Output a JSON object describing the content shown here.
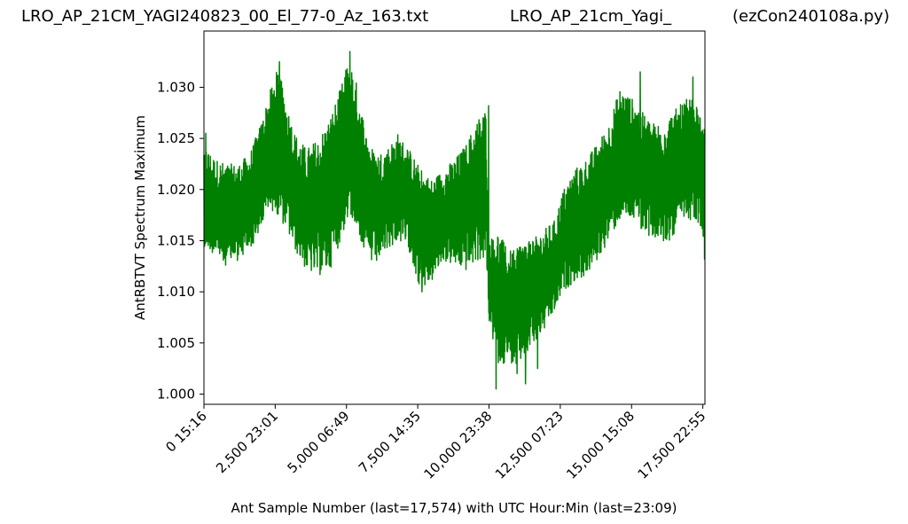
{
  "titles": {
    "left": "LRO_AP_21CM_YAGI240823_00_El_77-0_Az_163.txt",
    "middle": "LRO_AP_21cm_Yagi_",
    "right": "(ezCon240108a.py)"
  },
  "chart_data": {
    "type": "line",
    "xlabel": "Ant Sample Number (last=17,574) with UTC Hour:Min (last=23:09)",
    "ylabel": "AntRBTVT Spectrum Maximum",
    "xlim": [
      0,
      17574
    ],
    "ylim": [
      0.999,
      1.0355
    ],
    "x_ticks": [
      {
        "value": 0,
        "label": "0  15:16"
      },
      {
        "value": 2500,
        "label": "2,500  23:01"
      },
      {
        "value": 5000,
        "label": "5,000  06:49"
      },
      {
        "value": 7500,
        "label": "7,500  14:35"
      },
      {
        "value": 10000,
        "label": "10,000  23:38"
      },
      {
        "value": 12500,
        "label": "12,500  07:23"
      },
      {
        "value": 15000,
        "label": "15,000  15:08"
      },
      {
        "value": 17500,
        "label": "17,500  22:55"
      }
    ],
    "y_ticks": [
      {
        "value": 1.0,
        "label": "1.000"
      },
      {
        "value": 1.005,
        "label": "1.005"
      },
      {
        "value": 1.01,
        "label": "1.010"
      },
      {
        "value": 1.015,
        "label": "1.015"
      },
      {
        "value": 1.02,
        "label": "1.020"
      },
      {
        "value": 1.025,
        "label": "1.025"
      },
      {
        "value": 1.03,
        "label": "1.030"
      }
    ],
    "series": [
      {
        "color": "#008000",
        "envelope": [
          {
            "x": 0,
            "low": 1.0145,
            "high": 1.0245
          },
          {
            "x": 400,
            "low": 1.0135,
            "high": 1.023
          },
          {
            "x": 800,
            "low": 1.0125,
            "high": 1.0225
          },
          {
            "x": 1200,
            "low": 1.013,
            "high": 1.0225
          },
          {
            "x": 1600,
            "low": 1.014,
            "high": 1.0235
          },
          {
            "x": 2000,
            "low": 1.016,
            "high": 1.0265
          },
          {
            "x": 2300,
            "low": 1.018,
            "high": 1.0295
          },
          {
            "x": 2600,
            "low": 1.0175,
            "high": 1.032
          },
          {
            "x": 2900,
            "low": 1.016,
            "high": 1.0285
          },
          {
            "x": 3200,
            "low": 1.014,
            "high": 1.0255
          },
          {
            "x": 3600,
            "low": 1.012,
            "high": 1.024
          },
          {
            "x": 4000,
            "low": 1.0115,
            "high": 1.025
          },
          {
            "x": 4400,
            "low": 1.012,
            "high": 1.027
          },
          {
            "x": 4800,
            "low": 1.015,
            "high": 1.03
          },
          {
            "x": 5100,
            "low": 1.0175,
            "high": 1.033
          },
          {
            "x": 5400,
            "low": 1.016,
            "high": 1.03
          },
          {
            "x": 5700,
            "low": 1.013,
            "high": 1.0255
          },
          {
            "x": 6000,
            "low": 1.0125,
            "high": 1.0235
          },
          {
            "x": 6400,
            "low": 1.014,
            "high": 1.024
          },
          {
            "x": 6800,
            "low": 1.015,
            "high": 1.0255
          },
          {
            "x": 7200,
            "low": 1.014,
            "high": 1.024
          },
          {
            "x": 7600,
            "low": 1.01,
            "high": 1.022
          },
          {
            "x": 8000,
            "low": 1.011,
            "high": 1.021
          },
          {
            "x": 8400,
            "low": 1.013,
            "high": 1.022
          },
          {
            "x": 8800,
            "low": 1.0125,
            "high": 1.023
          },
          {
            "x": 9200,
            "low": 1.012,
            "high": 1.0245
          },
          {
            "x": 9600,
            "low": 1.013,
            "high": 1.027
          },
          {
            "x": 9900,
            "low": 1.013,
            "high": 1.028
          },
          {
            "x": 10000,
            "low": 1.007,
            "high": 1.015
          },
          {
            "x": 10300,
            "low": 1.003,
            "high": 1.016
          },
          {
            "x": 10700,
            "low": 1.003,
            "high": 1.014
          },
          {
            "x": 11100,
            "low": 1.003,
            "high": 1.015
          },
          {
            "x": 11500,
            "low": 1.005,
            "high": 1.0155
          },
          {
            "x": 11900,
            "low": 1.006,
            "high": 1.016
          },
          {
            "x": 12300,
            "low": 1.008,
            "high": 1.017
          },
          {
            "x": 12600,
            "low": 1.01,
            "high": 1.02
          },
          {
            "x": 13000,
            "low": 1.011,
            "high": 1.022
          },
          {
            "x": 13400,
            "low": 1.0115,
            "high": 1.023
          },
          {
            "x": 13800,
            "low": 1.013,
            "high": 1.0245
          },
          {
            "x": 14200,
            "low": 1.015,
            "high": 1.0265
          },
          {
            "x": 14600,
            "low": 1.017,
            "high": 1.03
          },
          {
            "x": 15000,
            "low": 1.017,
            "high": 1.029
          },
          {
            "x": 15400,
            "low": 1.016,
            "high": 1.0275
          },
          {
            "x": 15800,
            "low": 1.015,
            "high": 1.0265
          },
          {
            "x": 16200,
            "low": 1.0145,
            "high": 1.027
          },
          {
            "x": 16600,
            "low": 1.016,
            "high": 1.028
          },
          {
            "x": 17000,
            "low": 1.017,
            "high": 1.029
          },
          {
            "x": 17300,
            "low": 1.017,
            "high": 1.0285
          },
          {
            "x": 17574,
            "low": 1.015,
            "high": 1.026
          }
        ],
        "spikes": [
          {
            "x": 60,
            "value": 1.0255
          },
          {
            "x": 2650,
            "value": 1.0325
          },
          {
            "x": 5120,
            "value": 1.0335
          },
          {
            "x": 9980,
            "value": 1.0282
          },
          {
            "x": 10250,
            "value": 1.0005
          },
          {
            "x": 10520,
            "value": 1.0035
          },
          {
            "x": 10980,
            "value": 1.002
          },
          {
            "x": 11280,
            "value": 1.001
          },
          {
            "x": 11700,
            "value": 1.0025
          },
          {
            "x": 7650,
            "value": 1.01
          },
          {
            "x": 15300,
            "value": 1.0315
          },
          {
            "x": 17150,
            "value": 1.031
          },
          {
            "x": 17560,
            "value": 1.0132
          }
        ]
      }
    ]
  }
}
